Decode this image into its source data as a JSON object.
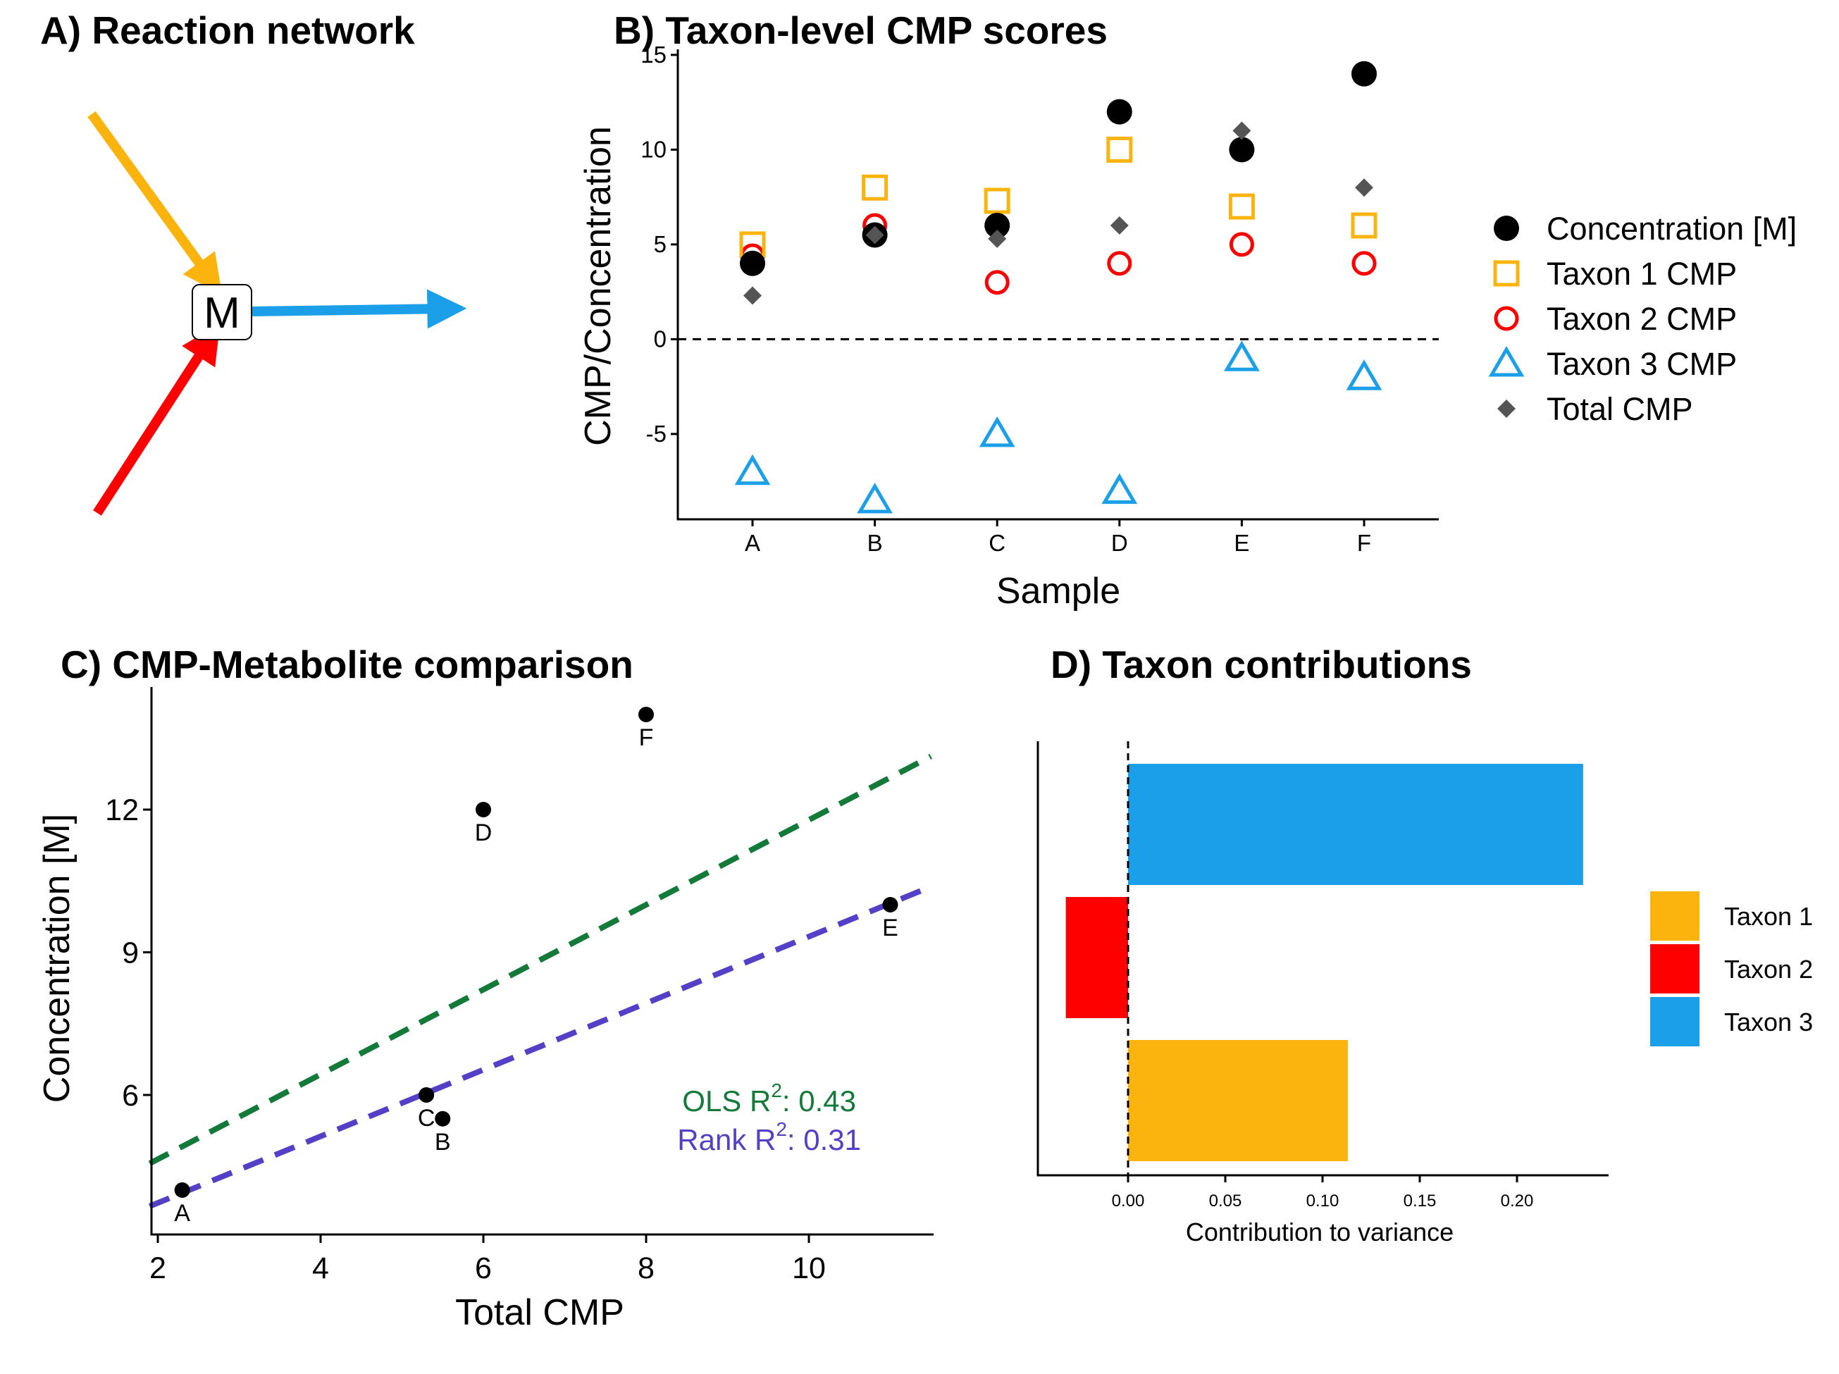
{
  "colors": {
    "taxon1": "#FBB30D",
    "taxon2": "#FF0000",
    "taxon3": "#1A9FE8",
    "total": "#555555",
    "concentration": "#000000",
    "ols": "#137A3A",
    "rank": "#5340C6"
  },
  "chart_data": [
    {
      "panel": "A",
      "type": "diagram",
      "title": "A) Reaction network",
      "node_label": "M",
      "edges": [
        {
          "series": "Taxon 1",
          "direction": "in"
        },
        {
          "series": "Taxon 2",
          "direction": "in"
        },
        {
          "series": "Taxon 3",
          "direction": "out"
        }
      ]
    },
    {
      "panel": "B",
      "type": "scatter",
      "title": "B) Taxon-level CMP scores",
      "xlabel": "Sample",
      "ylabel": "CMP/Concentration",
      "categories": [
        "A",
        "B",
        "C",
        "D",
        "E",
        "F"
      ],
      "ylim": [
        -9.5,
        15
      ],
      "yticks": [
        -5,
        0,
        5,
        10,
        15
      ],
      "reference_line": 0,
      "series": [
        {
          "name": "Concentration [M]",
          "key": "conc",
          "marker": "filled-circle",
          "values": [
            4,
            5.5,
            6,
            12,
            10,
            14
          ]
        },
        {
          "name": "Taxon 1 CMP",
          "key": "t1",
          "marker": "open-square",
          "values": [
            5,
            8,
            7.3,
            10,
            7,
            6
          ]
        },
        {
          "name": "Taxon 2 CMP",
          "key": "t2",
          "marker": "open-circle",
          "values": [
            4.4,
            6,
            3,
            4,
            5,
            4
          ]
        },
        {
          "name": "Taxon 3 CMP",
          "key": "t3",
          "marker": "open-triangle",
          "values": [
            -7,
            -8.5,
            -5,
            -8,
            -1,
            -2
          ]
        },
        {
          "name": "Total CMP",
          "key": "total",
          "marker": "filled-diamond",
          "values": [
            2.3,
            5.5,
            5.3,
            6,
            11,
            8
          ]
        }
      ],
      "legend_position": "right"
    },
    {
      "panel": "C",
      "type": "scatter",
      "title": "C) CMP-Metabolite comparison",
      "xlabel": "Total CMP",
      "ylabel": "Concentration [M]",
      "xlim": [
        1.9,
        11.5
      ],
      "ylim": [
        3.15,
        14.45
      ],
      "xticks": [
        2,
        4,
        6,
        8,
        10
      ],
      "yticks": [
        6,
        9,
        12
      ],
      "points": [
        {
          "label": "A",
          "x": 2.3,
          "y": 4
        },
        {
          "label": "B",
          "x": 5.5,
          "y": 5.5
        },
        {
          "label": "C",
          "x": 5.3,
          "y": 6
        },
        {
          "label": "D",
          "x": 6,
          "y": 12
        },
        {
          "label": "E",
          "x": 11,
          "y": 10
        },
        {
          "label": "F",
          "x": 8,
          "y": 14
        }
      ],
      "fit_lines": [
        {
          "name": "OLS",
          "x0": 1.9,
          "y0": 4.56,
          "x1": 11.5,
          "y1": 13.12
        },
        {
          "name": "Rank",
          "x0": 1.9,
          "y0": 3.66,
          "x1": 11.5,
          "y1": 10.38
        }
      ],
      "annotations": [
        {
          "prefix": "OLS R",
          "superscript": "2",
          "suffix": ": 0.43"
        },
        {
          "prefix": "Rank R",
          "superscript": "2",
          "suffix": ": 0.31"
        }
      ]
    },
    {
      "panel": "D",
      "type": "bar",
      "orientation": "horizontal",
      "title": "D) Taxon contributions",
      "xlabel": "Contribution to variance",
      "xlim": [
        -0.046,
        0.248
      ],
      "xticks": [
        "0.00",
        "0.05",
        "0.10",
        "0.15",
        "0.20"
      ],
      "xtick_values": [
        0,
        0.05,
        0.1,
        0.15,
        0.2
      ],
      "categories": [
        "Taxon 1",
        "Taxon 2",
        "Taxon 3"
      ],
      "values": [
        0.113,
        -0.032,
        0.234
      ],
      "reference_line": 0,
      "legend": [
        "Taxon 1",
        "Taxon 2",
        "Taxon 3"
      ],
      "legend_position": "right"
    }
  ]
}
